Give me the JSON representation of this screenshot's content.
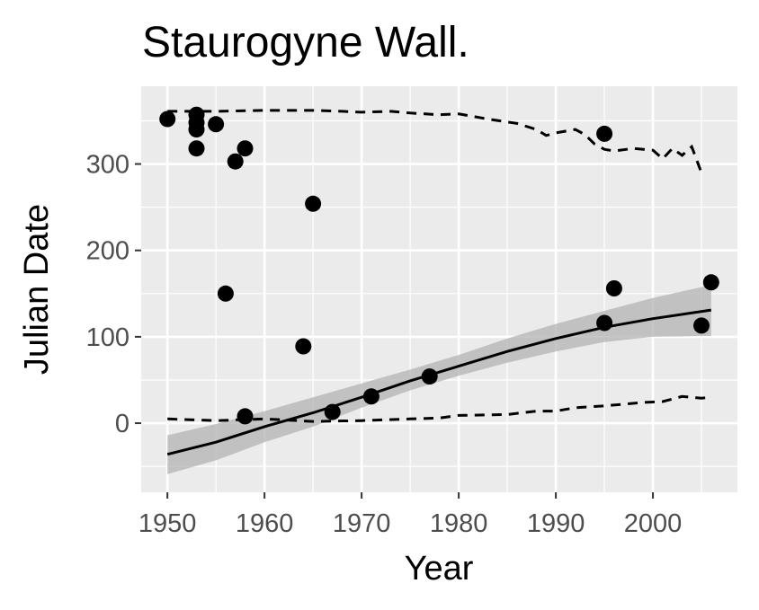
{
  "chart_data": {
    "type": "scatter",
    "title": "Staurogyne Wall.",
    "xlabel": "Year",
    "ylabel": "Julian Date",
    "xlim": [
      1947.3,
      2008.7
    ],
    "ylim": [
      -80,
      390
    ],
    "x_ticks": [
      1950,
      1960,
      1970,
      1980,
      1990,
      2000
    ],
    "y_ticks": [
      0,
      100,
      200,
      300
    ],
    "grid": true,
    "colors": {
      "panel": "#ebebeb",
      "grid": "#ffffff",
      "points": "#000000",
      "ribbon": "#b3b3b3",
      "tick_text": "#4d4d4d"
    },
    "points": [
      {
        "x": 1950,
        "y": 352
      },
      {
        "x": 1953,
        "y": 357
      },
      {
        "x": 1953,
        "y": 348
      },
      {
        "x": 1953,
        "y": 340
      },
      {
        "x": 1953,
        "y": 318
      },
      {
        "x": 1955,
        "y": 346
      },
      {
        "x": 1956,
        "y": 150
      },
      {
        "x": 1957,
        "y": 303
      },
      {
        "x": 1958,
        "y": 318
      },
      {
        "x": 1958,
        "y": 8
      },
      {
        "x": 1964,
        "y": 89
      },
      {
        "x": 1965,
        "y": 254
      },
      {
        "x": 1967,
        "y": 13
      },
      {
        "x": 1971,
        "y": 31
      },
      {
        "x": 1977,
        "y": 54
      },
      {
        "x": 1995,
        "y": 335
      },
      {
        "x": 1995,
        "y": 116
      },
      {
        "x": 1996,
        "y": 156
      },
      {
        "x": 2005,
        "y": 113
      },
      {
        "x": 2006,
        "y": 163
      }
    ],
    "trend": {
      "x": [
        1950,
        1955,
        1960,
        1965,
        1970,
        1975,
        1980,
        1985,
        1990,
        1995,
        2000,
        2006
      ],
      "y": [
        -36,
        -22,
        -4,
        12,
        30,
        49,
        66,
        83,
        98,
        111,
        121,
        131
      ],
      "lower": [
        -59,
        -43,
        -22,
        -4,
        18,
        38,
        55,
        70,
        83,
        94,
        100,
        101
      ],
      "upper": [
        -14,
        -1,
        14,
        30,
        46,
        62,
        79,
        98,
        115,
        130,
        145,
        160
      ]
    },
    "upper_dashed": {
      "x": [
        1950,
        1955,
        1960,
        1965,
        1968,
        1970,
        1973,
        1975,
        1978,
        1980,
        1983,
        1986,
        1988,
        1989,
        1990,
        1992,
        1993,
        1994,
        1995,
        1996,
        1998,
        2000,
        2001,
        2002,
        2003,
        2004,
        2005
      ],
      "y": [
        361,
        361,
        362,
        362,
        361,
        360,
        361,
        359,
        357,
        358,
        352,
        347,
        340,
        333,
        336,
        340,
        334,
        323,
        317,
        315,
        318,
        316,
        306,
        318,
        310,
        320,
        290
      ]
    },
    "lower_dashed": {
      "x": [
        1950,
        1955,
        1960,
        1965,
        1970,
        1975,
        1978,
        1980,
        1985,
        1988,
        1990,
        1992,
        1995,
        1997,
        1999,
        2001,
        2003,
        2005,
        2006
      ],
      "y": [
        5,
        3,
        5,
        2,
        3,
        5,
        6,
        9,
        10,
        14,
        14,
        18,
        20,
        22,
        24,
        25,
        31,
        29,
        30
      ]
    }
  }
}
